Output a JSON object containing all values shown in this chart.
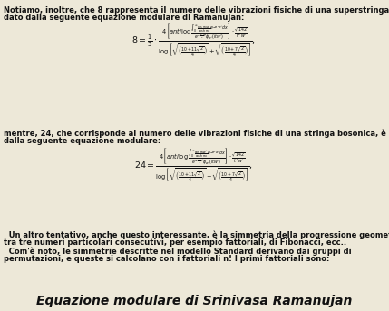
{
  "background_color": "#ede8d8",
  "title": "Equazione modulare di Srinivasa Ramanujan",
  "title_fontsize": 10,
  "text_color": "#111111",
  "para1_line1": "Notiamo, inoltre, che 8 rappresenta il numero delle vibrazioni fisiche di una superstringa, ed è",
  "para1_line2": "dato dalla seguente equazione modulare di Ramanujan:",
  "para2_line1": "mentre, 24, che corrisponde al numero delle vibrazioni fisiche di una stringa bosonica, è dato",
  "para2_line2": "dalla seguente equazione modulare:",
  "para3_line1": "  Un altro tentativo, anche questo interessante, è la simmetria della progressione geometrica",
  "para3_line2": "tra tre numeri particolari consecutivi, per esempio fattoriali, di Fibonacci, ecc..",
  "para3_line3": "  Com'è noto, le simmetrie descritte nel modello Standard derivano dai gruppi di",
  "para3_line4": "permutazioni, e queste si calcolano con i fattoriali n! I primi fattoriali sono:",
  "fs_body": 6.0,
  "fs_eq": 6.8,
  "eq1_lhs": "8 = \\frac{1}{3} \\cdot",
  "eq2_lhs": "24 =",
  "eq_num": "\\frac{4\\left[\\mathit{anti}\\log \\frac{\\int_0^{\\infty}\\frac{\\cos \\pi x w'}{\\cosh \\pi x}e^{-\\pi^2 w'}dx}{e^{-\\frac{\\pi^2}{4}w'}\\phi_{w'}(itw')}\\right] \\cdot \\frac{\\sqrt{142}}{t^2 w'}}{\\log\\left[\\sqrt{\\left(\\frac{10+11\\sqrt{2}}{4}\\right)}+\\sqrt{\\left(\\frac{10+7\\sqrt{2}}{4}\\right)}\\right]},"
}
